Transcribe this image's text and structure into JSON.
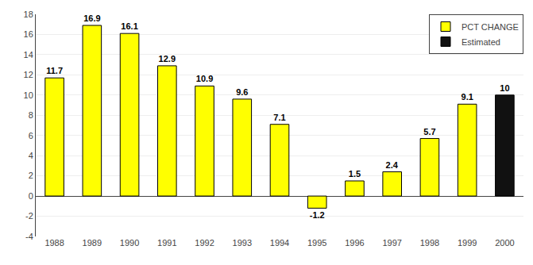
{
  "chart_data": {
    "type": "bar",
    "categories": [
      "1988",
      "1989",
      "1990",
      "1991",
      "1992",
      "1993",
      "1994",
      "1995",
      "1996",
      "1997",
      "1998",
      "1999",
      "2000"
    ],
    "series": [
      {
        "name": "PCT CHANGE",
        "color": "#FFFF00",
        "values": [
          11.7,
          16.9,
          16.1,
          12.9,
          10.9,
          9.6,
          7.1,
          -1.2,
          1.5,
          2.4,
          5.7,
          9.1,
          null
        ]
      },
      {
        "name": "Estimated",
        "color": "#111111",
        "values": [
          null,
          null,
          null,
          null,
          null,
          null,
          null,
          null,
          null,
          null,
          null,
          null,
          10
        ]
      }
    ],
    "ylim": [
      -4,
      18
    ],
    "yticks": [
      -4,
      -2,
      0,
      2,
      4,
      6,
      8,
      10,
      12,
      14,
      16,
      18
    ],
    "grid": true,
    "legend": "upper right",
    "data_labels": true
  }
}
